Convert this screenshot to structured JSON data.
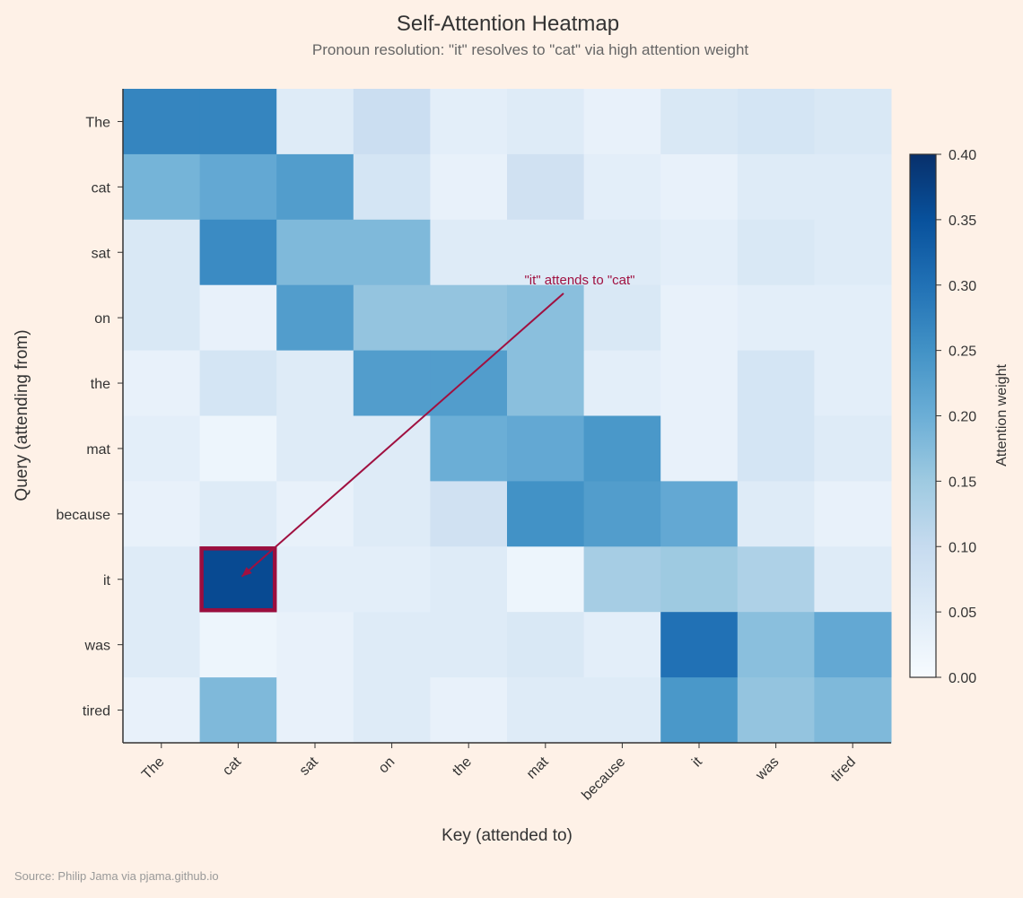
{
  "chart_data": {
    "type": "heatmap",
    "title": "Self-Attention Heatmap",
    "subtitle": "Pronoun resolution: \"it\" resolves to \"cat\" via high attention weight",
    "xlabel": "Key (attended to)",
    "ylabel": "Query (attending from)",
    "x_categories": [
      "The",
      "cat",
      "sat",
      "on",
      "the",
      "mat",
      "because",
      "it",
      "was",
      "tired"
    ],
    "y_categories": [
      "The",
      "cat",
      "sat",
      "on",
      "the",
      "mat",
      "because",
      "it",
      "was",
      "tired"
    ],
    "values": [
      [
        0.27,
        0.27,
        0.05,
        0.09,
        0.04,
        0.05,
        0.03,
        0.06,
        0.07,
        0.06
      ],
      [
        0.19,
        0.21,
        0.23,
        0.07,
        0.03,
        0.08,
        0.04,
        0.03,
        0.05,
        0.05
      ],
      [
        0.06,
        0.26,
        0.18,
        0.18,
        0.05,
        0.05,
        0.05,
        0.04,
        0.06,
        0.05
      ],
      [
        0.06,
        0.03,
        0.23,
        0.16,
        0.16,
        0.17,
        0.06,
        0.03,
        0.04,
        0.04
      ],
      [
        0.03,
        0.07,
        0.05,
        0.23,
        0.23,
        0.17,
        0.04,
        0.03,
        0.07,
        0.04
      ],
      [
        0.04,
        0.02,
        0.05,
        0.05,
        0.2,
        0.21,
        0.24,
        0.03,
        0.07,
        0.05
      ],
      [
        0.03,
        0.05,
        0.03,
        0.05,
        0.08,
        0.25,
        0.23,
        0.21,
        0.05,
        0.03
      ],
      [
        0.05,
        0.36,
        0.04,
        0.04,
        0.05,
        0.02,
        0.14,
        0.15,
        0.13,
        0.05
      ],
      [
        0.05,
        0.02,
        0.03,
        0.05,
        0.05,
        0.06,
        0.04,
        0.3,
        0.17,
        0.21
      ],
      [
        0.03,
        0.18,
        0.03,
        0.05,
        0.03,
        0.05,
        0.05,
        0.24,
        0.16,
        0.18
      ]
    ],
    "colormap": "Blues",
    "colorbar": {
      "label": "Attention weight",
      "range": [
        0,
        0.4
      ],
      "ticks": [
        "0.00",
        "0.05",
        "0.10",
        "0.15",
        "0.20",
        "0.25",
        "0.30",
        "0.35",
        "0.40"
      ]
    },
    "highlight": {
      "row": "it",
      "col": "cat",
      "color": "#9b0e3e"
    },
    "annotation": {
      "text": "\"it\" attends to \"cat\"",
      "color": "#a01040",
      "points_to": {
        "row": "it",
        "col": "cat"
      }
    },
    "legend": "colorbar-right",
    "grid": false
  },
  "source": "Source: Philip Jama via pjama.github.io"
}
